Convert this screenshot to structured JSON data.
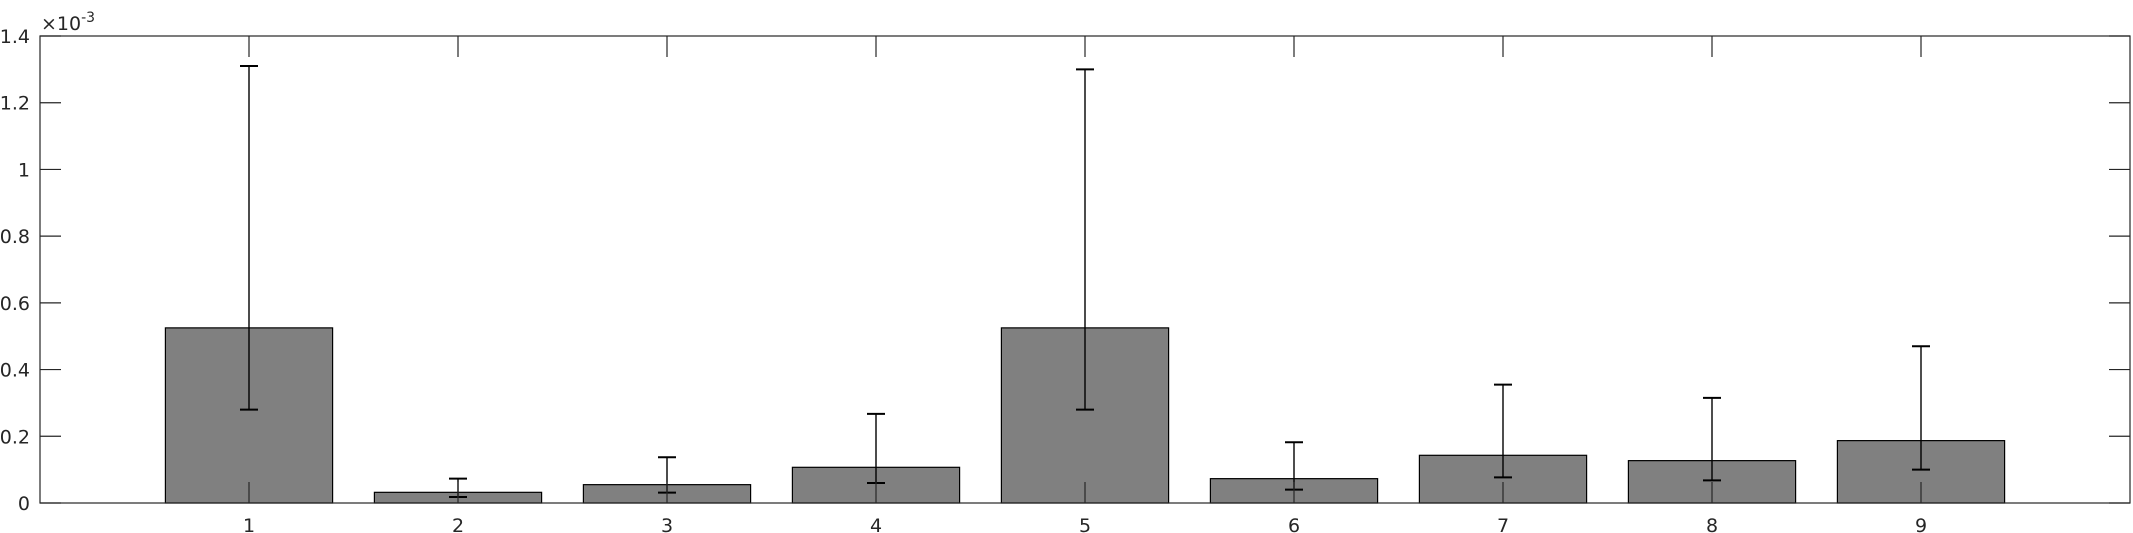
{
  "chart_data": {
    "type": "bar",
    "categories": [
      "1",
      "2",
      "3",
      "4",
      "5",
      "6",
      "7",
      "8",
      "9"
    ],
    "values": [
      0.000525,
      3.2e-05,
      5.5e-05,
      0.000107,
      0.000525,
      7.3e-05,
      0.000143,
      0.000127,
      0.000187
    ],
    "error_low": [
      0.00028,
      1.8e-05,
      3.1e-05,
      6e-05,
      0.00028,
      4e-05,
      7.7e-05,
      6.8e-05,
      0.0001
    ],
    "error_high": [
      0.00131,
      7.3e-05,
      0.000137,
      0.000267,
      0.0013,
      0.000182,
      0.000355,
      0.000315,
      0.00047
    ],
    "ylim": [
      0,
      0.0014
    ],
    "yticks": [
      0,
      0.0002,
      0.0004,
      0.0006,
      0.0008,
      0.001,
      0.0012,
      0.0014
    ],
    "ytick_labels": [
      "0",
      "0.2",
      "0.4",
      "0.6",
      "0.8",
      "1",
      "1.2",
      "1.4"
    ],
    "y_exponent_base": "×10",
    "y_exponent_power": "-3",
    "xlim": [
      0,
      10
    ],
    "bar_color": "#808080",
    "edge_color": "#000000",
    "axis_color": "#262626",
    "title": "",
    "xlabel": "",
    "ylabel": "",
    "grid": false,
    "box": true
  }
}
